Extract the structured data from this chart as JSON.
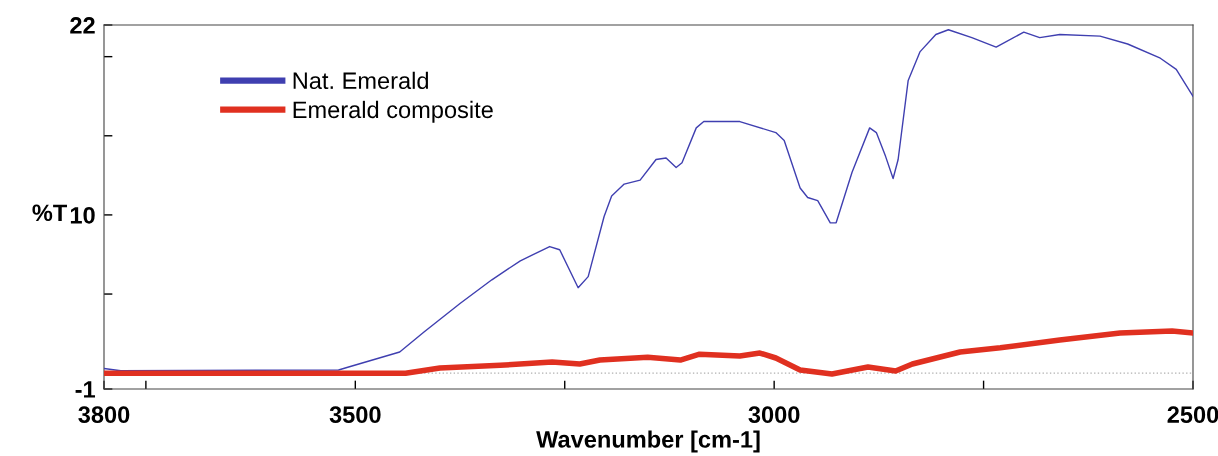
{
  "chart_data": {
    "type": "line",
    "xlabel": "Wavenumber [cm-1]",
    "ylabel": "%T",
    "xlim": [
      3800,
      2500
    ],
    "ylim": [
      -1,
      22
    ],
    "xticks": [
      3800,
      {
        "value": 3750,
        "label": null
      },
      3500,
      {
        "value": 3250,
        "label": null
      },
      3000,
      {
        "value": 2750,
        "label": null
      },
      2500
    ],
    "yticks": [
      -1,
      {
        "value": 5,
        "label": null
      },
      10,
      {
        "value": 15,
        "label": null
      },
      {
        "value": 20,
        "label": null
      },
      22
    ],
    "grid": false,
    "legend": "top left",
    "marker": "none",
    "line_style": "solid",
    "ref_lines": [
      {
        "axis": "y",
        "value": 0,
        "color": "#b0b0b0",
        "line_style": "dotted"
      }
    ],
    "series": [
      {
        "name": "Nat. Emerald",
        "color": "#3f3fb0",
        "x": [
          3800,
          3780,
          3520,
          3508,
          3447,
          3418,
          3375,
          3337,
          3303,
          3268,
          3256,
          3234,
          3222,
          3203,
          3194,
          3179,
          3160,
          3141,
          3129,
          3117,
          3110,
          3093,
          3084,
          3041,
          2998,
          2988,
          2969,
          2960,
          2948,
          2933,
          2926,
          2907,
          2886,
          2878,
          2867,
          2858,
          2852,
          2840,
          2826,
          2807,
          2792,
          2764,
          2735,
          2702,
          2683,
          2659,
          2611,
          2578,
          2539,
          2520,
          2500
        ],
        "values": [
          0.3,
          0.15,
          0.2,
          0.39,
          1.34,
          2.6,
          4.4,
          5.9,
          7.1,
          8.0,
          7.8,
          5.4,
          6.1,
          9.9,
          11.2,
          11.95,
          12.2,
          13.5,
          13.6,
          13.0,
          13.3,
          15.5,
          15.9,
          15.9,
          15.2,
          14.7,
          11.7,
          11.1,
          10.9,
          9.5,
          9.5,
          12.7,
          15.5,
          15.2,
          13.7,
          12.3,
          13.5,
          18.5,
          20.3,
          21.4,
          21.7,
          21.2,
          20.6,
          21.55,
          21.2,
          21.4,
          21.3,
          20.8,
          19.9,
          19.2,
          17.5
        ]
      },
      {
        "name": "Emerald composite",
        "color": "#e03020",
        "x": [
          3800,
          3600,
          3440,
          3399,
          3327,
          3265,
          3232,
          3208,
          3151,
          3112,
          3089,
          3041,
          3017,
          2998,
          2969,
          2931,
          2888,
          2855,
          2835,
          2778,
          2730,
          2659,
          2587,
          2525,
          2500
        ],
        "values": [
          0.0,
          0.0,
          0.0,
          0.33,
          0.5,
          0.7,
          0.58,
          0.83,
          1.0,
          0.83,
          1.2,
          1.08,
          1.27,
          0.96,
          0.2,
          -0.05,
          0.39,
          0.14,
          0.58,
          1.34,
          1.6,
          2.1,
          2.54,
          2.66,
          2.54
        ]
      }
    ]
  }
}
